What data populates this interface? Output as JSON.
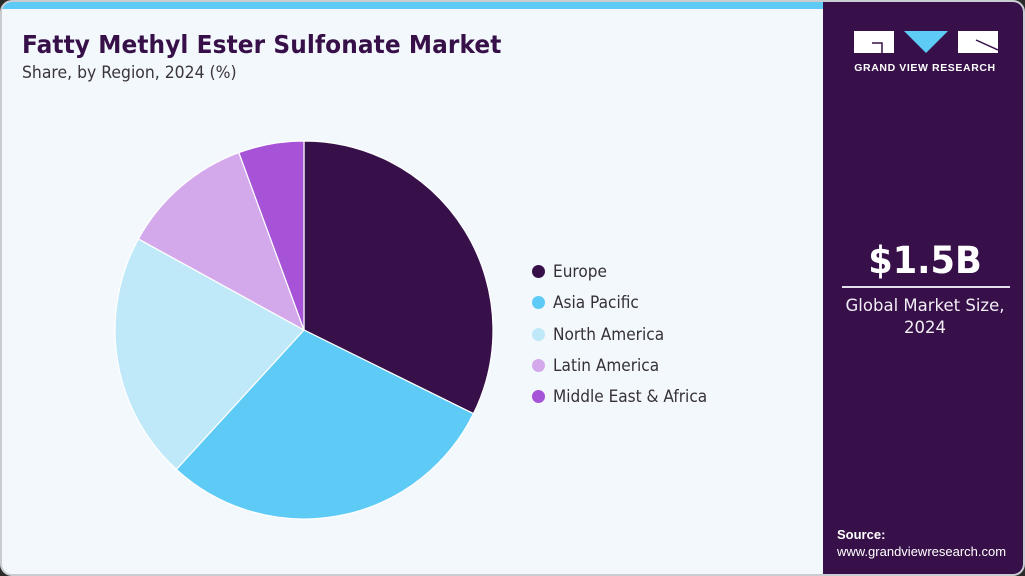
{
  "header": {
    "title": "Fatty Methyl Ester Sulfonate Market",
    "subtitle": "Share, by Region, 2024 (%)"
  },
  "colors": {
    "accent_bar": "#5ecbf7",
    "panel_bg": "#371049",
    "title_text": "#371049",
    "card_bg": "#f3f8fc"
  },
  "brand": {
    "name": "GRAND VIEW RESEARCH",
    "logo_icon": "gvr-logo-icon"
  },
  "summary": {
    "market_value": "$1.5B",
    "market_label": "Global Market Size, 2024"
  },
  "source": {
    "label": "Source:",
    "url": "www.grandviewresearch.com"
  },
  "chart_data": {
    "type": "pie",
    "title": "Fatty Methyl Ester Sulfonate Market",
    "subtitle": "Share, by Region, 2024 (%)",
    "categories": [
      "Europe",
      "Asia Pacific",
      "North America",
      "Latin America",
      "Middle East & Africa"
    ],
    "values": [
      32.3,
      29.5,
      21.2,
      11.4,
      5.6
    ],
    "colors": [
      "#371049",
      "#5ecbf7",
      "#bfe9f9",
      "#d4a9ec",
      "#a653d8"
    ],
    "start_angle_deg": 0,
    "direction": "clockwise",
    "data_labels": false,
    "legend_position": "right",
    "center": [
      302,
      328
    ],
    "radius": 189
  }
}
